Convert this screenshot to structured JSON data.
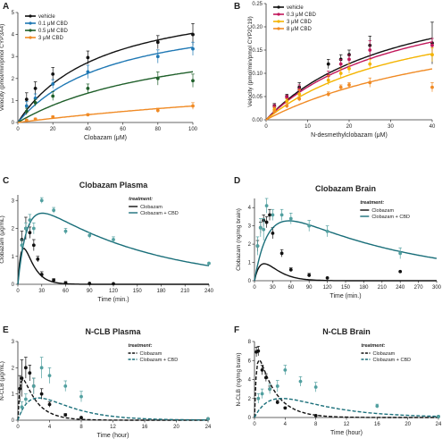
{
  "colors": {
    "black": "#111111",
    "blue": "#1f78b4",
    "lightblue": "#5fa8d8",
    "green": "#1f5f2a",
    "orange": "#f08a24",
    "magenta": "#c2185b",
    "yellow": "#f4b400",
    "teal": "#1a6f7a",
    "tealpt": "#52a0a0"
  },
  "chart_data": [
    {
      "panel": "A",
      "type": "scatter",
      "title": "",
      "xlabel": "Clobazam (μM)",
      "ylabel": "Velocity (pmol/min/pmol CYP3A4)",
      "xlim": [
        0,
        100
      ],
      "ylim": [
        0,
        5
      ],
      "xticks": [
        0,
        20,
        40,
        60,
        80,
        100
      ],
      "yticks": [
        0,
        1,
        2,
        3,
        4,
        5
      ],
      "legend": "top-left",
      "series": [
        {
          "name": "vehicle",
          "color": "black",
          "x": [
            5,
            10,
            20,
            40,
            80,
            100
          ],
          "y": [
            1.05,
            1.55,
            2.2,
            2.95,
            3.65,
            4.0
          ],
          "err": [
            0.3,
            0.3,
            0.3,
            0.3,
            0.3,
            0.5
          ],
          "curve": {
            "vmax": 6.0,
            "km": 48
          }
        },
        {
          "name": "0.1 μM CBD",
          "color": "blue",
          "x": [
            5,
            10,
            20,
            40,
            80,
            100
          ],
          "y": [
            0.75,
            1.1,
            1.75,
            2.3,
            3.0,
            3.35
          ],
          "err": [
            0.2,
            0.2,
            0.2,
            0.3,
            0.3,
            0.3
          ],
          "curve": {
            "vmax": 5.3,
            "km": 55
          }
        },
        {
          "name": "0.5 μM CBD",
          "color": "green",
          "x": [
            5,
            10,
            20,
            40,
            80,
            100
          ],
          "y": [
            0.5,
            0.9,
            1.2,
            1.55,
            2.0,
            1.9
          ],
          "err": [
            0.15,
            0.15,
            0.2,
            0.2,
            0.3,
            0.3
          ],
          "curve": {
            "vmax": 4.5,
            "km": 95
          }
        },
        {
          "name": "3 μM CBD",
          "color": "orange",
          "x": [
            5,
            10,
            20,
            40,
            80,
            100
          ],
          "y": [
            0.1,
            0.15,
            0.25,
            0.35,
            0.55,
            0.75
          ],
          "err": [
            0.05,
            0.05,
            0.05,
            0.05,
            0.1,
            0.15
          ],
          "curve": {
            "vmax": 3.0,
            "km": 300
          }
        }
      ]
    },
    {
      "panel": "B",
      "type": "scatter",
      "title": "",
      "xlabel": "N-desmethylclobazam (μM)",
      "ylabel": "Velocity (pmol/min/pmol CYP2C19)",
      "xlim": [
        0,
        40
      ],
      "ylim": [
        0,
        0.25
      ],
      "xticks": [
        0,
        10,
        20,
        30,
        40
      ],
      "yticks": [
        0.0,
        0.05,
        0.1,
        0.15,
        0.2,
        0.25
      ],
      "legend": "top-left",
      "series": [
        {
          "name": "vehicle",
          "color": "black",
          "x": [
            2,
            5,
            8,
            15,
            18,
            20,
            25,
            40
          ],
          "y": [
            0.03,
            0.05,
            0.07,
            0.12,
            0.13,
            0.14,
            0.16,
            0.165
          ],
          "err": [
            0.005,
            0.005,
            0.01,
            0.01,
            0.01,
            0.01,
            0.02,
            0.045
          ],
          "curve": {
            "vmax": 0.32,
            "km": 33
          }
        },
        {
          "name": "0.3 μM CBD",
          "color": "magenta",
          "x": [
            2,
            5,
            8,
            15,
            18,
            20,
            25,
            40
          ],
          "y": [
            0.028,
            0.048,
            0.065,
            0.095,
            0.12,
            0.13,
            0.15,
            0.16
          ],
          "err": [
            0.005,
            0.005,
            0.01,
            0.01,
            0.01,
            0.01,
            0.02,
            0.015
          ],
          "curve": {
            "vmax": 0.31,
            "km": 34
          }
        },
        {
          "name": "3 μM CBD",
          "color": "yellow",
          "x": [
            2,
            5,
            8,
            15,
            18,
            20,
            25,
            40
          ],
          "y": [
            0.022,
            0.04,
            0.055,
            0.085,
            0.1,
            0.11,
            0.12,
            0.14
          ],
          "err": [
            0.005,
            0.005,
            0.01,
            0.01,
            0.01,
            0.01,
            0.01,
            0.015
          ],
          "curve": {
            "vmax": 0.27,
            "km": 36
          }
        },
        {
          "name": "8 μM CBD",
          "color": "orange",
          "x": [
            2,
            5,
            8,
            15,
            18,
            20,
            25,
            40
          ],
          "y": [
            0.018,
            0.03,
            0.045,
            0.055,
            0.07,
            0.075,
            0.08,
            0.07
          ],
          "err": [
            0.005,
            0.005,
            0.005,
            0.005,
            0.005,
            0.005,
            0.01,
            0.01
          ],
          "curve": {
            "vmax": 0.26,
            "km": 55
          }
        }
      ]
    },
    {
      "panel": "C",
      "type": "line",
      "title": "Clobazam Plasma",
      "xlabel": "Time (min.)",
      "ylabel": "Clobazam (μg/mL)",
      "xlim": [
        0,
        240
      ],
      "ylim": [
        0,
        3.2
      ],
      "xticks": [
        0,
        30,
        60,
        90,
        120,
        150,
        180,
        210,
        240
      ],
      "yticks": [
        0,
        1,
        2,
        3
      ],
      "legend_title": "treatment:",
      "legend": "top-right",
      "series": [
        {
          "name": "Clobazam",
          "color": "black",
          "dash": false,
          "x": [
            5,
            10,
            15,
            20,
            25,
            30,
            45,
            60,
            90,
            120
          ],
          "y": [
            1.6,
            2.0,
            1.85,
            1.4,
            0.9,
            0.35,
            0.15,
            0.05,
            0.03,
            0.02
          ],
          "err": [
            0.3,
            0.4,
            0.2,
            0.2,
            0.1,
            0.1,
            0.05,
            0.05,
            0,
            0
          ],
          "curve": {
            "a": 4.5,
            "ke": 0.09,
            "ka": 0.2
          }
        },
        {
          "name": "Clobazam + CBD",
          "color": "teal",
          "dash": false,
          "x": [
            5,
            10,
            15,
            20,
            30,
            45,
            60,
            90,
            120,
            240
          ],
          "y": [
            1.4,
            2.0,
            2.3,
            2.0,
            3.0,
            2.65,
            1.9,
            1.75,
            1.6,
            0.75
          ],
          "err": [
            0.2,
            0.2,
            0.2,
            0.2,
            0.1,
            0.1,
            0.1,
            0.1,
            0.1,
            0
          ],
          "curve": {
            "a": 3.4,
            "ke": 0.0068,
            "ka": 0.09
          }
        }
      ]
    },
    {
      "panel": "D",
      "type": "line",
      "title": "Clobazam Brain",
      "xlabel": "Time (min.)",
      "ylabel": "Clobazam (ng/mg brain)",
      "xlim": [
        0,
        300
      ],
      "ylim": [
        0,
        4.5
      ],
      "xticks": [
        0,
        30,
        60,
        90,
        120,
        150,
        180,
        210,
        240,
        270,
        300
      ],
      "yticks": [
        0,
        1,
        2,
        3,
        4
      ],
      "legend_title": "treatment:",
      "legend": "top-right",
      "series": [
        {
          "name": "Clobazam",
          "color": "black",
          "dash": false,
          "x": [
            5,
            10,
            15,
            20,
            25,
            30,
            45,
            60,
            90,
            120,
            240
          ],
          "y": [
            1.9,
            2.9,
            3.3,
            3.2,
            3.6,
            2.6,
            1.5,
            0.6,
            0.3,
            0.15,
            0.5
          ],
          "err": [
            0.3,
            0.3,
            0.3,
            0.3,
            0.3,
            0.3,
            0.2,
            0.1,
            0.1,
            0,
            0
          ],
          "curve": {
            "a": 10.5,
            "ke": 0.055,
            "ka": 0.07
          }
        },
        {
          "name": "Clobazam + CBD",
          "color": "teal",
          "dash": false,
          "x": [
            5,
            10,
            15,
            20,
            30,
            45,
            60,
            90,
            120,
            240
          ],
          "y": [
            1.9,
            2.9,
            2.8,
            4.1,
            3.6,
            3.6,
            3.4,
            3.0,
            2.7,
            1.5
          ],
          "err": [
            0.5,
            0.5,
            0.6,
            0.4,
            0.3,
            0.3,
            0.3,
            0.3,
            0.3,
            0.3
          ],
          "curve": {
            "a": 4.7,
            "ke": 0.0045,
            "ka": 0.045
          }
        }
      ]
    },
    {
      "panel": "E",
      "type": "line",
      "title": "N-CLB Plasma",
      "xlabel": "Time (hour)",
      "ylabel": "N-CLB (μg/mL)",
      "xlim": [
        0,
        24
      ],
      "ylim": [
        0,
        3
      ],
      "xticks": [
        0,
        4,
        8,
        12,
        16,
        20,
        24
      ],
      "yticks": [
        0,
        1,
        2,
        3
      ],
      "legend_title": "treatment:",
      "legend": "top-right",
      "series": [
        {
          "name": "Clobazam",
          "color": "black",
          "dash": true,
          "x": [
            0.25,
            0.5,
            1,
            1.5,
            2,
            3,
            4,
            6,
            8,
            24
          ],
          "y": [
            1.2,
            1.6,
            2.0,
            1.8,
            1.3,
            1.0,
            0.6,
            0.2,
            0.1,
            0.05
          ],
          "err": [
            0.5,
            0.7,
            0.4,
            0.3,
            0.3,
            0.2,
            0.1,
            0.05,
            0,
            0
          ],
          "curve": {
            "a": 2.6,
            "ke": 0.55,
            "ka": 3.5
          }
        },
        {
          "name": "Clobazam + CBD",
          "color": "teal",
          "dash": true,
          "x": [
            0.5,
            1,
            2,
            3,
            4,
            6,
            8,
            24
          ],
          "y": [
            0.5,
            0.8,
            1.3,
            2.0,
            1.7,
            1.3,
            0.9,
            0.05
          ],
          "err": [
            0.2,
            0.2,
            0.3,
            0.4,
            0.3,
            0.2,
            0.2,
            0
          ],
          "curve": {
            "a": 3.0,
            "ke": 0.25,
            "ka": 0.55
          }
        }
      ]
    },
    {
      "panel": "F",
      "type": "line",
      "title": "N-CLB Brain",
      "xlabel": "Time (hour)",
      "ylabel": "N-CLB (ng/mg brain)",
      "xlim": [
        0,
        24
      ],
      "ylim": [
        0,
        8
      ],
      "xticks": [
        0,
        4,
        8,
        12,
        16,
        20,
        24
      ],
      "yticks": [
        0,
        2,
        4,
        6,
        8
      ],
      "legend_title": "treatment:",
      "legend": "top-right",
      "series": [
        {
          "name": "Clobazam",
          "color": "black",
          "dash": true,
          "x": [
            0.25,
            0.5,
            1,
            1.5,
            2,
            3,
            4,
            8,
            24
          ],
          "y": [
            6.9,
            7.0,
            5.0,
            4.2,
            3.0,
            1.6,
            1.0,
            0.2,
            0.1
          ],
          "err": [
            0.5,
            0.5,
            0.5,
            0.4,
            0.3,
            0.2,
            0.1,
            0,
            0
          ],
          "curve": {
            "a": 9.0,
            "ke": 0.45,
            "ka": 4.0
          }
        },
        {
          "name": "Clobazam + CBD",
          "color": "teal",
          "dash": true,
          "x": [
            0.5,
            1,
            2,
            3,
            4,
            6,
            8,
            16,
            24
          ],
          "y": [
            2.0,
            2.5,
            3.0,
            3.3,
            5.0,
            3.8,
            3.2,
            1.2,
            0.1
          ],
          "err": [
            0.5,
            0.5,
            0.5,
            0.6,
            0.5,
            0.5,
            0.5,
            0.2,
            0
          ],
          "curve": {
            "a": 5.5,
            "ke": 0.16,
            "ka": 0.45
          }
        }
      ]
    }
  ]
}
